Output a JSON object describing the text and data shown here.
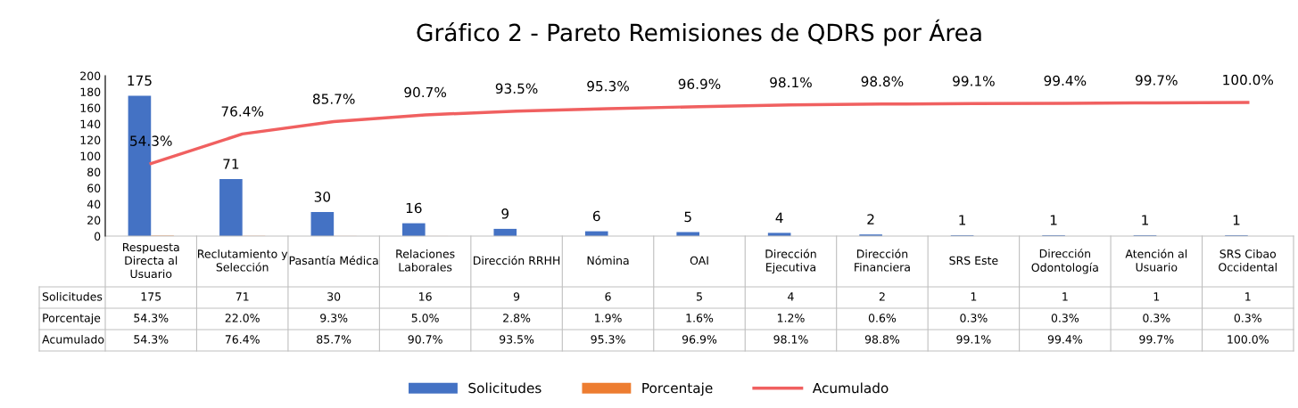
{
  "chart_data": {
    "type": "bar",
    "title": "Gráfico 2 - Pareto Remisiones de QDRS por Área",
    "categories": [
      "Respuesta Directa al Usuario",
      "Reclutamiento y Selección",
      "Pasantía Médica",
      "Relaciones Laborales",
      "Dirección RRHH",
      "Nómina",
      "OAI",
      "Dirección Ejecutiva",
      "Dirección Financiera",
      "SRS Este",
      "Dirección Odontología",
      "Atención al Usuario",
      "SRS Cibao Occidental"
    ],
    "series": [
      {
        "name": "Solicitudes",
        "color": "#4472c4",
        "values": [
          175,
          71,
          30,
          16,
          9,
          6,
          5,
          4,
          2,
          1,
          1,
          1,
          1
        ],
        "value_labels": [
          "175",
          "71",
          "30",
          "16",
          "9",
          "6",
          "5",
          "4",
          "2",
          "1",
          "1",
          "1",
          "1"
        ]
      },
      {
        "name": "Porcentaje",
        "color": "#ed7d31",
        "values": [
          0.543,
          0.22,
          0.093,
          0.05,
          0.028,
          0.019,
          0.016,
          0.012,
          0.006,
          0.003,
          0.003,
          0.003,
          0.003
        ],
        "value_labels": [
          "54.3%",
          "22.0%",
          "9.3%",
          "5.0%",
          "2.8%",
          "1.9%",
          "1.6%",
          "1.2%",
          "0.6%",
          "0.3%",
          "0.3%",
          "0.3%",
          "0.3%"
        ]
      },
      {
        "name": "Acumulado",
        "type": "line",
        "axis": "y2",
        "color": "#f06060",
        "values": [
          54.3,
          76.4,
          85.7,
          90.7,
          93.5,
          95.3,
          96.9,
          98.1,
          98.8,
          99.1,
          99.4,
          99.7,
          100.0
        ],
        "value_labels": [
          "54.3%",
          "76.4%",
          "85.7%",
          "90.7%",
          "93.5%",
          "95.3%",
          "96.9%",
          "98.1%",
          "98.8%",
          "99.1%",
          "99.4%",
          "99.7%",
          "100.0%"
        ]
      }
    ],
    "ylim": [
      0,
      200
    ],
    "yticks": [
      0,
      20,
      40,
      60,
      80,
      100,
      120,
      140,
      160,
      180,
      200
    ],
    "y2lim": [
      0,
      120
    ],
    "data_labels": true,
    "grid": false,
    "legend": "bottom",
    "marker": "none",
    "line_style": "solid"
  }
}
